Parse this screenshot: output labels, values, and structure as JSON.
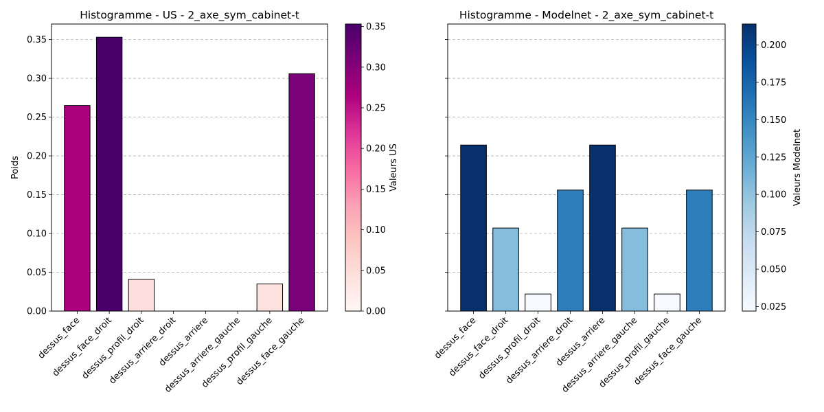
{
  "chart_data": [
    {
      "type": "bar",
      "title": "Histogramme - US - 2_axe_sym_cabinet-t",
      "xlabel": "",
      "ylabel": "Poids",
      "ylim": [
        0,
        0.37
      ],
      "yticks": [
        "0.00",
        "0.05",
        "0.10",
        "0.15",
        "0.20",
        "0.25",
        "0.30",
        "0.35"
      ],
      "ytick_values": [
        0,
        0.05,
        0.1,
        0.15,
        0.2,
        0.25,
        0.3,
        0.35
      ],
      "show_ytick_labels": true,
      "grid": "y",
      "categories": [
        "dessus_face",
        "dessus_face_droit",
        "dessus_profil_droit",
        "dessus_arriere_droit",
        "dessus_arriere",
        "dessus_arriere_gauche",
        "dessus_profil_gauche",
        "dessus_face_gauche"
      ],
      "values": [
        0.265,
        0.353,
        0.041,
        0.0,
        0.0,
        0.0,
        0.035,
        0.306
      ],
      "bar_colors": [
        "#ad017e",
        "#4a006b",
        "#fde0dd",
        "#fff7f3",
        "#fff7f3",
        "#fff7f3",
        "#fde1de",
        "#7b0178"
      ],
      "colorbar": {
        "label": "Valeurs US",
        "colormap": "RdPu",
        "range": [
          0,
          0.353
        ],
        "ticks": [
          "0.00",
          "0.05",
          "0.10",
          "0.15",
          "0.20",
          "0.25",
          "0.30",
          "0.35"
        ],
        "tick_values": [
          0,
          0.05,
          0.1,
          0.15,
          0.2,
          0.25,
          0.3,
          0.35
        ],
        "stops": [
          "#fff7f3",
          "#fde0dd",
          "#fcc5c0",
          "#fa9fb5",
          "#f768a1",
          "#dd3497",
          "#ae017e",
          "#7a0177",
          "#49006a"
        ]
      }
    },
    {
      "type": "bar",
      "title": "Histogramme - Modelnet - 2_axe_sym_cabinet-t",
      "xlabel": "",
      "ylabel": "",
      "ylim": [
        0,
        0.37
      ],
      "yticks": [],
      "ytick_values": [
        0,
        0.05,
        0.1,
        0.15,
        0.2,
        0.25,
        0.3,
        0.35
      ],
      "show_ytick_labels": false,
      "grid": "y",
      "categories": [
        "dessus_face",
        "dessus_face_droit",
        "dessus_profil_droit",
        "dessus_arriere_droit",
        "dessus_arriere",
        "dessus_arriere_gauche",
        "dessus_profil_gauche",
        "dessus_face_gauche"
      ],
      "values": [
        0.214,
        0.107,
        0.022,
        0.156,
        0.214,
        0.107,
        0.022,
        0.156
      ],
      "bar_colors": [
        "#08306b",
        "#86bcdc",
        "#f7fbff",
        "#2f7ebc",
        "#08306b",
        "#86bcdc",
        "#f7fbff",
        "#2f7ebc"
      ],
      "colorbar": {
        "label": "Valeurs Modelnet",
        "colormap": "Blues",
        "range": [
          0.022,
          0.214
        ],
        "ticks": [
          "0.025",
          "0.050",
          "0.075",
          "0.100",
          "0.125",
          "0.150",
          "0.175",
          "0.200"
        ],
        "tick_values": [
          0.025,
          0.05,
          0.075,
          0.1,
          0.125,
          0.15,
          0.175,
          0.2
        ],
        "stops": [
          "#f7fbff",
          "#deebf7",
          "#c6dbef",
          "#9ecae1",
          "#6baed6",
          "#4292c6",
          "#2171b5",
          "#08519c",
          "#08306b"
        ]
      }
    }
  ]
}
